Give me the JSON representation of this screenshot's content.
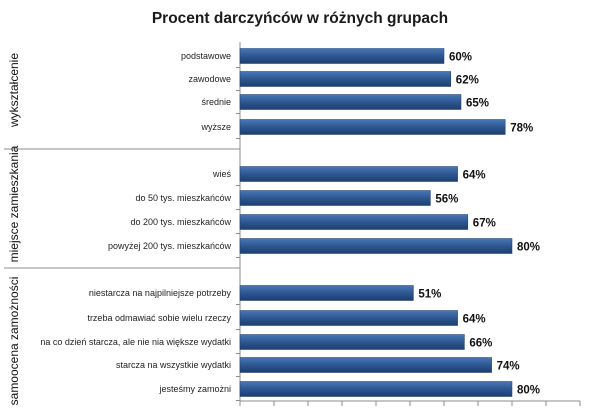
{
  "chart_data": {
    "type": "bar",
    "orientation": "horizontal",
    "title": "Procent darczyńców w różnych grupach",
    "xlim": [
      0,
      100
    ],
    "value_suffix": "%",
    "bar_color": "#2f5a95",
    "groups": [
      {
        "name": "wykształcenie",
        "categories": [
          "podstawowe",
          "zawodowe",
          "średnie",
          "wyższe"
        ],
        "values": [
          60,
          62,
          65,
          78
        ],
        "value_labels": [
          "60%",
          "62%",
          "65%",
          "78%"
        ]
      },
      {
        "name": "miejsce zamieszkania",
        "categories": [
          "wieś",
          "do 50 tys. mieszkańców",
          "do 200 tys. mieszkańców",
          "powyżej 200 tys. mieszkańców"
        ],
        "values": [
          64,
          56,
          67,
          80
        ],
        "value_labels": [
          "64%",
          "56%",
          "67%",
          "80%"
        ]
      },
      {
        "name": "samoocena zamożności",
        "categories": [
          "niestarcza na najpilniejsze potrzeby",
          "trzeba odmawiać sobie wielu rzeczy",
          "na co dzień starcza, ale nie nia większe wydatki",
          "starcza na wszystkie wydatki",
          "jesteśmy zamożni"
        ],
        "values": [
          51,
          64,
          66,
          74,
          80
        ],
        "value_labels": [
          "51%",
          "64%",
          "66%",
          "74%",
          "80%"
        ]
      }
    ]
  }
}
